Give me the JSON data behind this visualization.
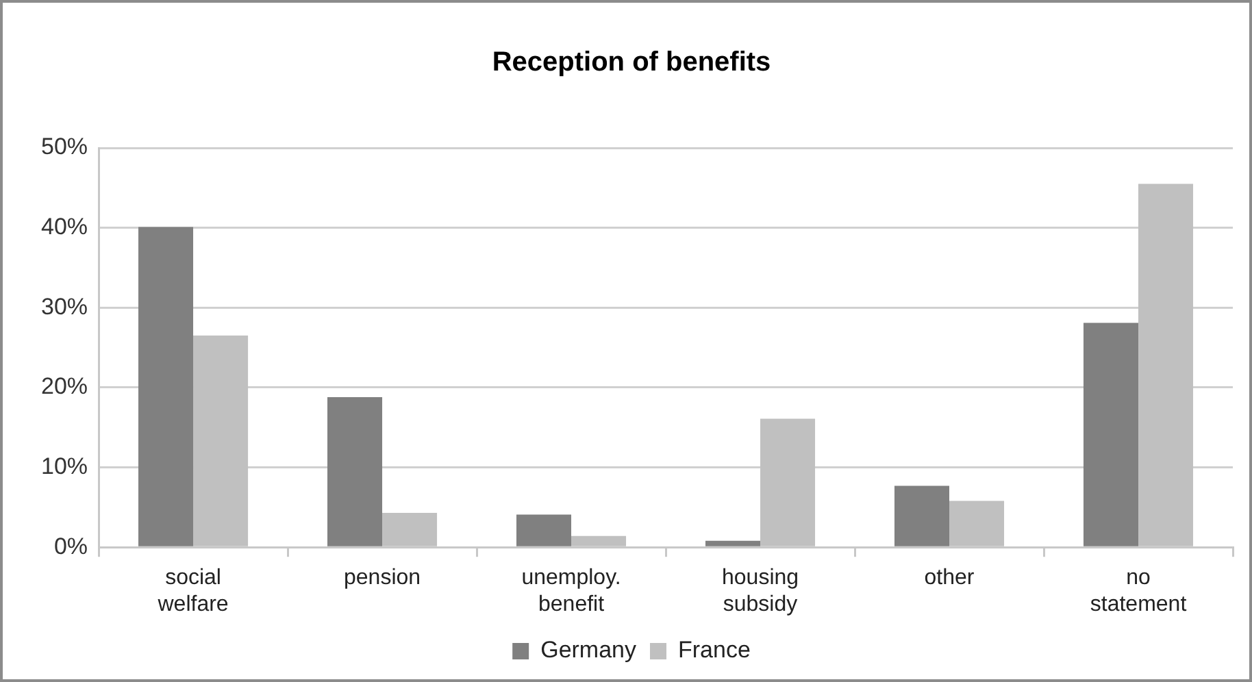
{
  "chart_data": {
    "type": "bar",
    "title": "Reception of benefits",
    "categories": [
      "social welfare",
      "pension",
      "unemploy. benefit",
      "housing subsidy",
      "other",
      "no statement"
    ],
    "series": [
      {
        "name": "Germany",
        "color": "#808080",
        "values": [
          40.1,
          18.8,
          4.1,
          0.8,
          7.7,
          28.1
        ]
      },
      {
        "name": "France",
        "color": "#c0c0c0",
        "values": [
          26.5,
          4.3,
          1.4,
          16.1,
          5.8,
          45.5
        ]
      }
    ],
    "ylim": [
      0,
      50
    ],
    "yticks": [
      {
        "value": 0,
        "label": "0%"
      },
      {
        "value": 10,
        "label": "10%"
      },
      {
        "value": 20,
        "label": "20%"
      },
      {
        "value": 30,
        "label": "30%"
      },
      {
        "value": 40,
        "label": "40%"
      },
      {
        "value": 50,
        "label": "50%"
      }
    ],
    "grid": "y",
    "legend": "bottom"
  }
}
